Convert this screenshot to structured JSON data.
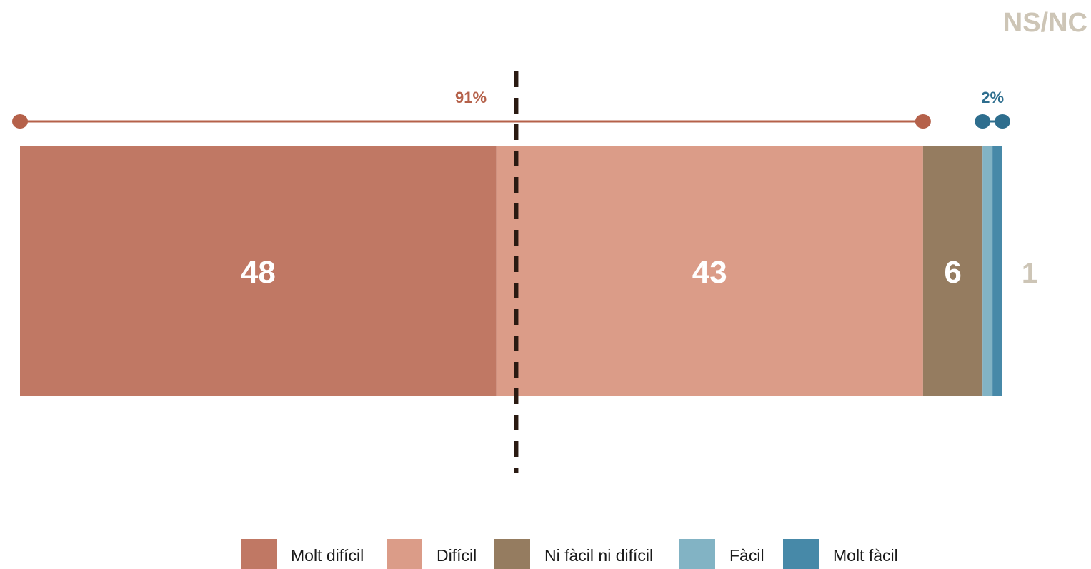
{
  "chart_data": {
    "type": "bar",
    "orientation": "horizontal-stacked",
    "categories": [
      "Molt difícil",
      "Difícil",
      "Ni fàcil ni difícil",
      "Fàcil",
      "Molt fàcil"
    ],
    "values": [
      48,
      43,
      6,
      1,
      1
    ],
    "value_labels": [
      "48",
      "43",
      "6",
      "",
      ""
    ],
    "colors": [
      "#c07864",
      "#db9c88",
      "#957c60",
      "#82b3c4",
      "#4789a8"
    ],
    "nsnc": {
      "header": "NS/NC",
      "value": 1,
      "label": "1"
    },
    "brackets": [
      {
        "label": "91%",
        "from": 0,
        "to": 91,
        "color": "#b5614a"
      },
      {
        "label": "2%",
        "from": 97,
        "to": 99,
        "color": "#2e6e8e"
      }
    ],
    "reference_line": {
      "at": 50,
      "style": "dashed",
      "color": "#2a1a12"
    },
    "xlim": [
      0,
      99
    ],
    "legend_position": "bottom",
    "grid": false
  }
}
